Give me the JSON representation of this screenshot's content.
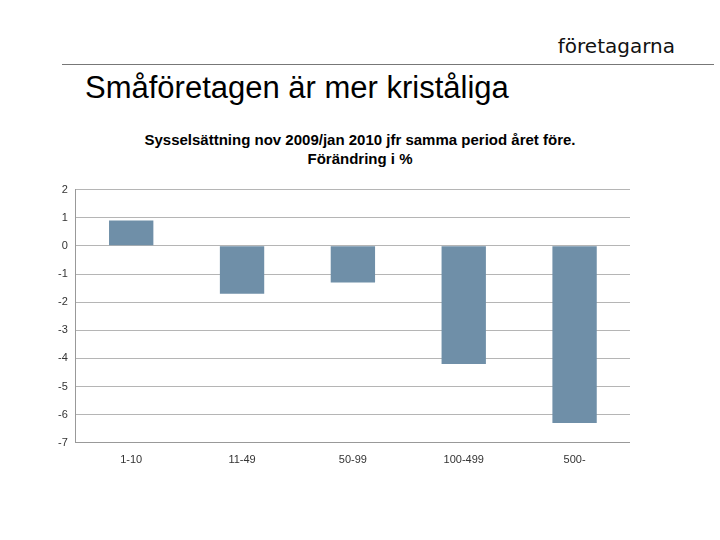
{
  "header": {
    "logo": "företagarna",
    "title": "Småföretagen är mer kriståliga"
  },
  "chart_data": {
    "type": "bar",
    "title": "Sysselsättning nov 2009/jan 2010 jfr samma period året före. Förändring i %",
    "categories": [
      "1-10",
      "11-49",
      "50-99",
      "100-499",
      "500-"
    ],
    "values": [
      0.9,
      -1.7,
      -1.3,
      -4.2,
      -6.3
    ],
    "color": "#6f8fa8",
    "ylim": [
      -7,
      2
    ],
    "yticks": [
      -7,
      -6,
      -5,
      -4,
      -3,
      -2,
      -1,
      0,
      1,
      2
    ],
    "grid": true
  }
}
